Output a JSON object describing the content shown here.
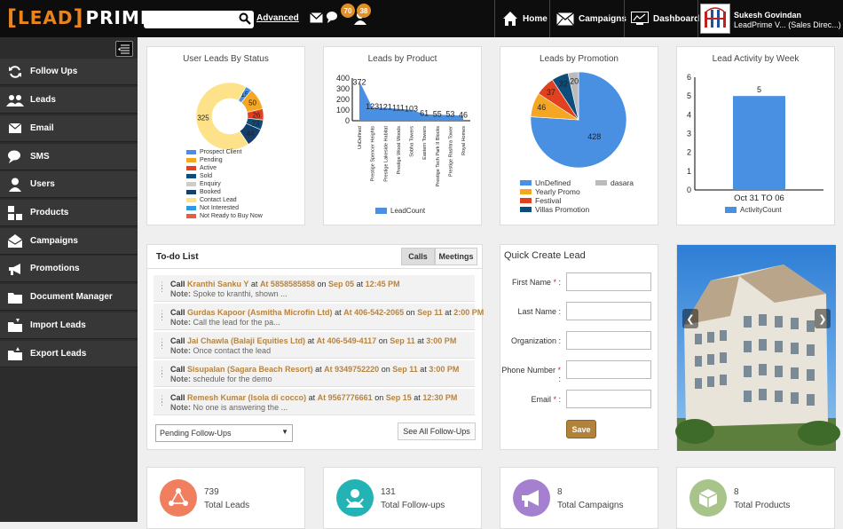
{
  "header": {
    "logo_bracket_open": "[",
    "logo_lead": "LEAD",
    "logo_bracket_close": "]",
    "logo_prime": "PRIME",
    "search_placeholder": "",
    "advanced_label": "Advanced",
    "follow_up_badge": "70",
    "user_badge": "38",
    "nav": [
      {
        "label": "Home",
        "icon": "home-icon"
      },
      {
        "label": "Campaigns",
        "icon": "envelope-icon"
      },
      {
        "label": "Dashboard",
        "icon": "chart-icon"
      }
    ],
    "user_name": "Sukesh Govindan",
    "user_role": "LeadPrime V... (Sales Direc...)"
  },
  "sidebar": {
    "items": [
      {
        "label": "Follow Ups",
        "icon": "refresh-icon"
      },
      {
        "label": "Leads",
        "icon": "users-icon"
      },
      {
        "label": "Email",
        "icon": "envelope-icon"
      },
      {
        "label": "SMS",
        "icon": "chat-icon"
      },
      {
        "label": "Users",
        "icon": "user-icon"
      },
      {
        "label": "Products",
        "icon": "boxes-icon"
      },
      {
        "label": "Campaigns",
        "icon": "open-envelope-icon"
      },
      {
        "label": "Promotions",
        "icon": "megaphone-icon"
      },
      {
        "label": "Document Manager",
        "icon": "folder-icon"
      },
      {
        "label": "Import Leads",
        "icon": "folder-import-icon"
      },
      {
        "label": "Export Leads",
        "icon": "folder-export-icon"
      }
    ]
  },
  "charts": {
    "status_title": "User Leads By Status",
    "product_title": "Leads by Product",
    "promotion_title": "Leads by Promotion",
    "week_title": "Lead Activity by Week"
  },
  "chart_data": [
    {
      "type": "pie",
      "title": "User Leads By Status",
      "categories": [
        "Prospect Client",
        "Pending",
        "Active",
        "Sold",
        "Enquiry",
        "Booked",
        "Contact Lead",
        "Not Interested",
        "Not Ready to Buy Now"
      ],
      "colors": [
        "#4a90e2",
        "#f5a623",
        "#e2401f",
        "#0e4d7a",
        "#cccccc",
        "#143e6b",
        "#fde28a",
        "#3399dd",
        "#e06040"
      ],
      "values": [
        15,
        50,
        26,
        23,
        0,
        44,
        325,
        0,
        0
      ],
      "labels": [
        "15",
        "50",
        "26",
        "23",
        "",
        "44",
        "325",
        "",
        ""
      ]
    },
    {
      "type": "area",
      "title": "Leads by Product",
      "categories": [
        "UnDefined",
        "Prestige Spencer Heights",
        "Prestige Lakeside Habitat",
        "Prestige Wood Woods",
        "Sobha Towers",
        "Eastern Towers",
        "Prestige Tech Park II Blocks",
        "Prestige Rashtra Tower",
        "Royal Homes"
      ],
      "series": [
        {
          "name": "LeadCount",
          "values": [
            372,
            123,
            121,
            111,
            103,
            61,
            55,
            53,
            46
          ]
        }
      ],
      "yticks": [
        "0",
        "100",
        "200",
        "300",
        "400"
      ],
      "ylim": [
        0,
        400
      ],
      "color": "#4a90e2"
    },
    {
      "type": "pie",
      "title": "Leads by Promotion",
      "categories": [
        "UnDefined",
        "Yearly Promo",
        "Festival",
        "Villas Promotion",
        "dasara"
      ],
      "colors": [
        "#4a90e2",
        "#f5a623",
        "#e2401f",
        "#0e4d7a",
        "#bbbbbb"
      ],
      "values": [
        428,
        46,
        37,
        32,
        20
      ],
      "labels": [
        "428",
        "46",
        "37",
        "32",
        "20"
      ]
    },
    {
      "type": "bar",
      "title": "Lead Activity by Week",
      "categories": [
        "Oct 31 TO 06"
      ],
      "series": [
        {
          "name": "ActivityCount",
          "values": [
            5
          ]
        }
      ],
      "yticks": [
        "0",
        "1",
        "2",
        "3",
        "4",
        "5",
        "6"
      ],
      "ylim": [
        0,
        6
      ],
      "color": "#4a90e2"
    }
  ],
  "todo": {
    "title": "To-do List",
    "tabs": [
      "Calls",
      "Meetings"
    ],
    "items": [
      {
        "verb": "Call",
        "who": "Kranthi Sanku Y",
        "at1": "at",
        "phone": "At 5858585858",
        "on": "on",
        "date": "Sep 05",
        "at2": "at",
        "time": "12:45 PM",
        "note_label": "Note:",
        "note": "Spoke to kranthi, shown ..."
      },
      {
        "verb": "Call",
        "who": "Gurdas Kapoor (Asmitha Microfin Ltd)",
        "at1": "at",
        "phone": "At 406-542-2065",
        "on": "on",
        "date": "Sep 11",
        "at2": "at",
        "time": "2:00 PM",
        "note_label": "Note:",
        "note": "Call the lead for the pa..."
      },
      {
        "verb": "Call",
        "who": "Jai Chawla (Balaji Equities Ltd)",
        "at1": "at",
        "phone": "At 406-549-4117",
        "on": "on",
        "date": "Sep 11",
        "at2": "at",
        "time": "3:00 PM",
        "note_label": "Note:",
        "note": "Once contact the lead"
      },
      {
        "verb": "Call",
        "who": "Sisupalan (Sagara Beach Resort)",
        "at1": "at",
        "phone": "At 9349752220",
        "on": "on",
        "date": "Sep 11",
        "at2": "at",
        "time": "3:00 PM",
        "note_label": "Note:",
        "note": "schedule for the demo"
      },
      {
        "verb": "Call",
        "who": "Remesh Kumar (Isola di cocco)",
        "at1": "at",
        "phone": "At 9567776661",
        "on": "on",
        "date": "Sep 15",
        "at2": "at",
        "time": "12:30 PM",
        "note_label": "Note:",
        "note": "No one is answering the ..."
      }
    ],
    "filter_value": "Pending Follow-Ups",
    "see_all_label": "See All Follow-Ups"
  },
  "quick_create": {
    "title": "Quick Create Lead",
    "fields": [
      {
        "label": "First Name",
        "required": "*",
        "suffix": " :",
        "value": ""
      },
      {
        "label": "Last Name",
        "required": "",
        "suffix": " :",
        "value": ""
      },
      {
        "label": "Organization",
        "required": "",
        "suffix": " :",
        "value": ""
      },
      {
        "label": "Phone Number",
        "required": "*",
        "suffix": " :",
        "value": ""
      },
      {
        "label": "Email",
        "required": "*",
        "suffix": " :",
        "value": ""
      }
    ],
    "save_label": "Save"
  },
  "carousel": {
    "prev": "❮",
    "next": "❯"
  },
  "stats": [
    {
      "value": "739",
      "label": "Total Leads",
      "color": "#f07f5f",
      "icon": "leads-network-icon"
    },
    {
      "value": "131",
      "label": "Total Follow-ups",
      "color": "#23b3b5",
      "icon": "followup-user-icon"
    },
    {
      "value": "8",
      "label": "Total Campaigns",
      "color": "#a680d0",
      "icon": "megaphone-icon"
    },
    {
      "value": "8",
      "label": "Total Products",
      "color": "#a8c48a",
      "icon": "box-icon"
    }
  ]
}
